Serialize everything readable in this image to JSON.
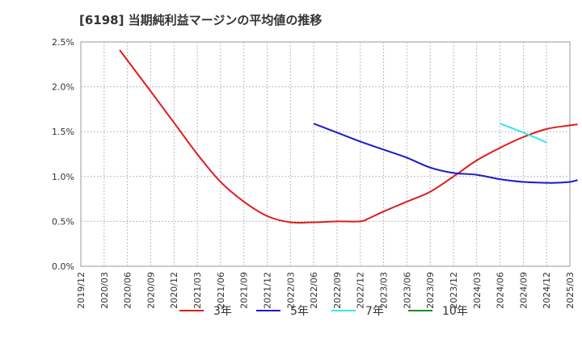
{
  "chart_data": {
    "type": "line",
    "title": "[6198]  当期純利益マージンの平均値の推移",
    "x_ticks": [
      "2019/12",
      "2020/03",
      "2020/06",
      "2020/09",
      "2020/12",
      "2021/03",
      "2021/06",
      "2021/09",
      "2021/12",
      "2022/03",
      "2022/06",
      "2022/09",
      "2022/12",
      "2023/03",
      "2023/06",
      "2023/09",
      "2023/12",
      "2024/03",
      "2024/06",
      "2024/09",
      "2024/12",
      "2025/03"
    ],
    "y_ticks": [
      "0.0%",
      "0.5%",
      "1.0%",
      "1.5%",
      "2.0%",
      "2.5%"
    ],
    "ylim": [
      0,
      2.5
    ],
    "grid": true,
    "legend_position": "bottom",
    "series": [
      {
        "name": "3年",
        "color": "#e01b1b",
        "points": [
          [
            "2020/05",
            2.41
          ],
          [
            "2020/09",
            1.95
          ],
          [
            "2020/12",
            1.6
          ],
          [
            "2021/03",
            1.25
          ],
          [
            "2021/06",
            0.94
          ],
          [
            "2021/09",
            0.72
          ],
          [
            "2021/12",
            0.56
          ],
          [
            "2022/03",
            0.49
          ],
          [
            "2022/06",
            0.49
          ],
          [
            "2022/09",
            0.5
          ],
          [
            "2022/12",
            0.5
          ],
          [
            "2023/01",
            0.53
          ],
          [
            "2023/03",
            0.61
          ],
          [
            "2023/06",
            0.72
          ],
          [
            "2023/09",
            0.83
          ],
          [
            "2023/12",
            1.0
          ],
          [
            "2024/03",
            1.18
          ],
          [
            "2024/06",
            1.32
          ],
          [
            "2024/09",
            1.44
          ],
          [
            "2024/12",
            1.53
          ],
          [
            "2025/03",
            1.57
          ],
          [
            "2025/04",
            1.58
          ]
        ]
      },
      {
        "name": "5年",
        "color": "#1a1acc",
        "points": [
          [
            "2022/06",
            1.59
          ],
          [
            "2022/09",
            1.49
          ],
          [
            "2022/12",
            1.39
          ],
          [
            "2023/03",
            1.3
          ],
          [
            "2023/06",
            1.21
          ],
          [
            "2023/09",
            1.1
          ],
          [
            "2023/12",
            1.04
          ],
          [
            "2024/03",
            1.02
          ],
          [
            "2024/06",
            0.97
          ],
          [
            "2024/09",
            0.94
          ],
          [
            "2024/12",
            0.93
          ],
          [
            "2025/01",
            0.93
          ],
          [
            "2025/03",
            0.94
          ],
          [
            "2025/04",
            0.96
          ]
        ]
      },
      {
        "name": "7年",
        "color": "#33e6ee",
        "points": [
          [
            "2024/06",
            1.59
          ],
          [
            "2024/09",
            1.49
          ],
          [
            "2024/12",
            1.38
          ]
        ]
      },
      {
        "name": "10年",
        "color": "#1f8a1f",
        "points": []
      }
    ]
  }
}
